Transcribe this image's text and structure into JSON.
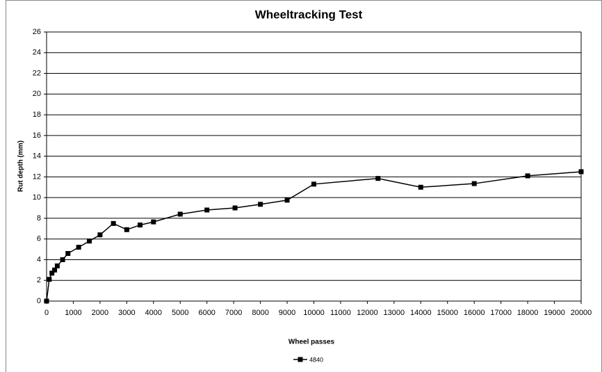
{
  "chart_data": {
    "type": "line",
    "title": "Wheeltracking Test",
    "x_label": "Wheel passes",
    "y_label": "Rut depth (mm)",
    "x": [
      0,
      100,
      200,
      300,
      400,
      600,
      800,
      1200,
      1600,
      2000,
      2500,
      3000,
      3500,
      4000,
      5000,
      6000,
      7050,
      8000,
      9000,
      10000,
      12400,
      14000,
      16000,
      18000,
      20000
    ],
    "series": [
      {
        "name": "4840",
        "color": "#000000",
        "marker": "square",
        "values": [
          0,
          2.1,
          2.7,
          3.0,
          3.4,
          4.0,
          4.6,
          5.2,
          5.8,
          6.4,
          7.5,
          6.9,
          7.35,
          7.65,
          8.4,
          8.8,
          9.0,
          9.35,
          9.75,
          11.3,
          11.85,
          11.0,
          11.35,
          12.1,
          12.5
        ]
      }
    ],
    "xlim": [
      0,
      20000
    ],
    "xticks": [
      0,
      1000,
      2000,
      3000,
      4000,
      5000,
      6000,
      7000,
      8000,
      9000,
      10000,
      11000,
      12000,
      13000,
      14000,
      15000,
      16000,
      17000,
      18000,
      19000,
      20000
    ],
    "ylim": [
      0,
      26
    ],
    "yticks": [
      0,
      2,
      4,
      6,
      8,
      10,
      12,
      14,
      16,
      18,
      20,
      22,
      24,
      26
    ],
    "grid": true,
    "legend": "bottom"
  }
}
